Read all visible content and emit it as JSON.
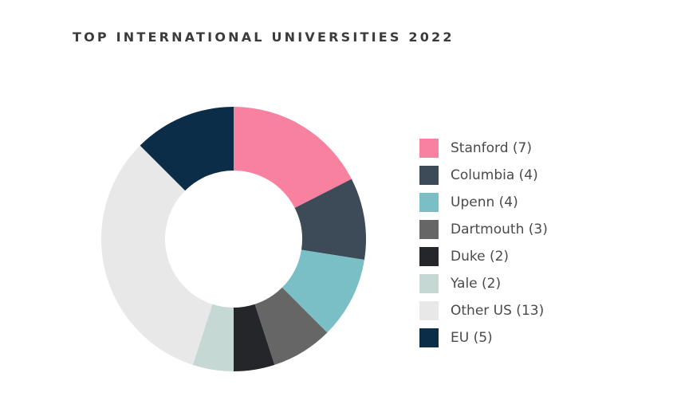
{
  "chart_data": {
    "type": "pie",
    "title": "TOP INTERNATIONAL UNIVERSITIES 2022",
    "donut": true,
    "legend_position": "right",
    "categories": [
      "Stanford (7)",
      "Columbia (4)",
      "Upenn (4)",
      "Dartmouth (3)",
      "Duke (2)",
      "Yale (2)",
      "Other US (13)",
      "EU (5)"
    ],
    "values": [
      7,
      4,
      4,
      3,
      2,
      2,
      13,
      5
    ],
    "colors": [
      "#f7819f",
      "#3d4a57",
      "#7bbfc6",
      "#666666",
      "#252629",
      "#c6d8d3",
      "#e8e8e8",
      "#0c2d48"
    ]
  }
}
